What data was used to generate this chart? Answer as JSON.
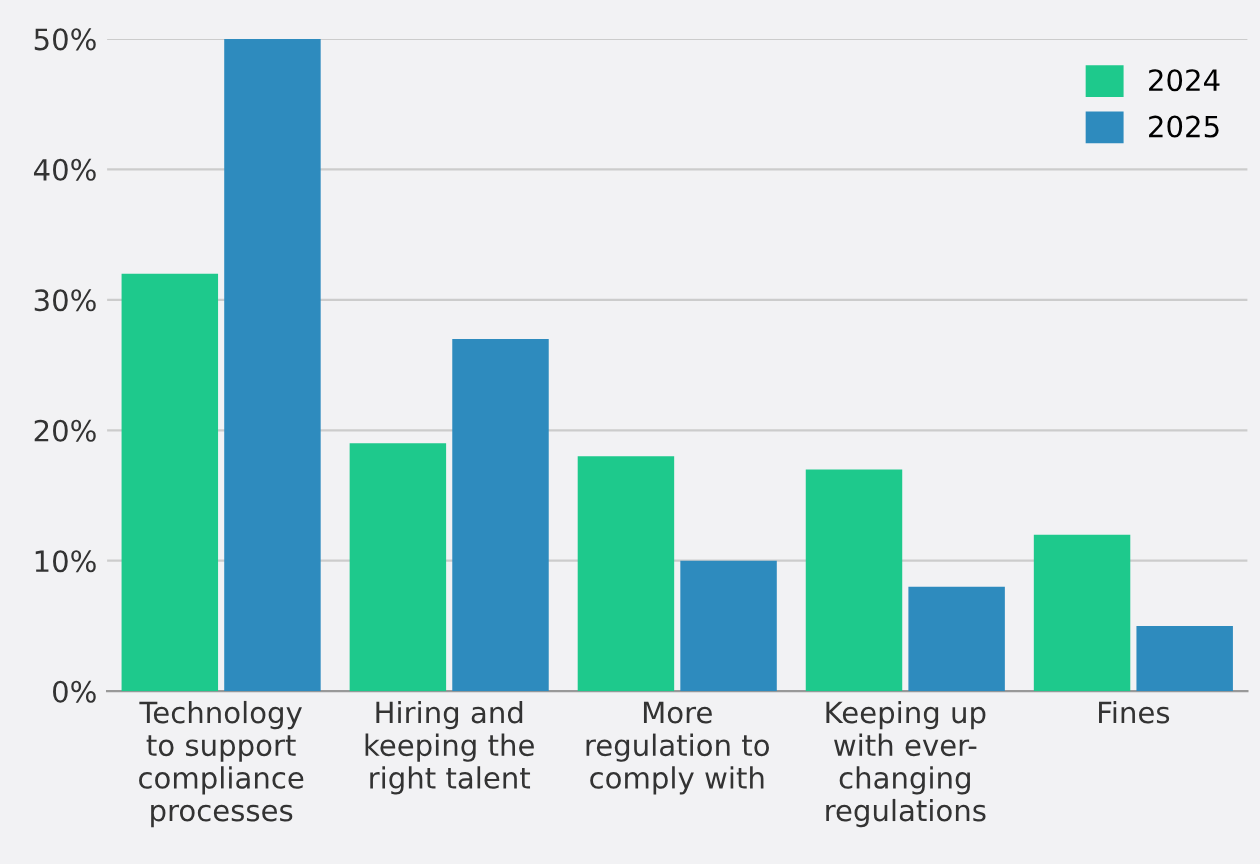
{
  "chart_data": {
    "type": "bar",
    "categories": [
      "Technology\nto support\ncompliance\nprocesses",
      "Hiring and\nkeeping the\nright talent",
      "More\nregulation to\ncomply with",
      "Keeping up\nwith ever-\nchanging\nregulations",
      "Fines"
    ],
    "series": [
      {
        "name": "2024",
        "color": "#1ec98c",
        "values": [
          32,
          19,
          18,
          17,
          12
        ]
      },
      {
        "name": "2025",
        "color": "#2e8bbe",
        "values": [
          50,
          27,
          10,
          8,
          5
        ]
      }
    ],
    "ylim": [
      0,
      50
    ],
    "yticks": [
      {
        "value": 0,
        "label": "0%"
      },
      {
        "value": 10,
        "label": "10%"
      },
      {
        "value": 20,
        "label": "20%"
      },
      {
        "value": 30,
        "label": "30%"
      },
      {
        "value": 40,
        "label": "40%"
      },
      {
        "value": 50,
        "label": "50%"
      }
    ],
    "grid": "y",
    "legend": "top right"
  }
}
